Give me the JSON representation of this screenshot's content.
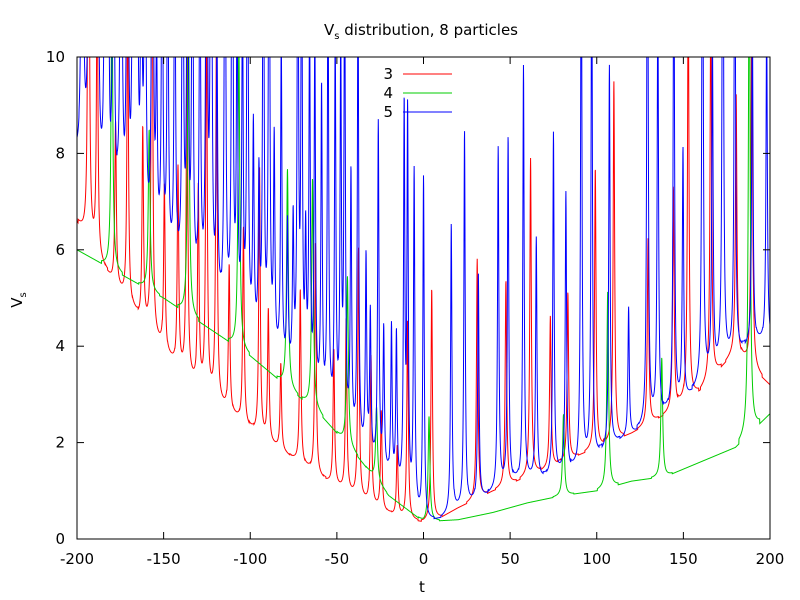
{
  "chart_data": {
    "type": "line",
    "title": "V",
    "title_sub": "s",
    "title_rest": " distribution, 8 particles",
    "xlabel": "t",
    "ylabel": "V",
    "ylabel_sub": "s",
    "xlim": [
      -200,
      200
    ],
    "ylim": [
      0,
      10
    ],
    "xticks": [
      -200,
      -150,
      -100,
      -50,
      0,
      50,
      100,
      150,
      200
    ],
    "yticks": [
      0,
      2,
      4,
      6,
      8,
      10
    ],
    "grid": false,
    "legend_position": "top-center",
    "series": [
      {
        "name": "3",
        "color": "#ff0000",
        "base": [
          [
            -200,
            6.6
          ],
          [
            -180,
            5.4
          ],
          [
            -160,
            4.4
          ],
          [
            -140,
            3.5
          ],
          [
            -120,
            2.9
          ],
          [
            -100,
            2.3
          ],
          [
            -80,
            1.8
          ],
          [
            -60,
            1.3
          ],
          [
            -40,
            0.9
          ],
          [
            -20,
            0.55
          ],
          [
            -10,
            0.42
          ],
          [
            0,
            0.36
          ],
          [
            10,
            0.45
          ],
          [
            20,
            0.65
          ],
          [
            40,
            1.0
          ],
          [
            60,
            1.3
          ],
          [
            80,
            1.6
          ],
          [
            100,
            1.9
          ],
          [
            120,
            2.2
          ],
          [
            140,
            2.6
          ],
          [
            160,
            3.1
          ],
          [
            180,
            3.9
          ],
          [
            200,
            3.2
          ]
        ],
        "spike_spacing": 7.5,
        "spike_height": 2.5,
        "spike_width": 0.5
      },
      {
        "name": "4",
        "color": "#00cc00",
        "base": [
          [
            -200,
            6.0
          ],
          [
            -150,
            5.0
          ],
          [
            -100,
            3.8
          ],
          [
            -60,
            2.6
          ],
          [
            -40,
            1.8
          ],
          [
            -20,
            0.9
          ],
          [
            0,
            0.36
          ],
          [
            20,
            0.4
          ],
          [
            40,
            0.55
          ],
          [
            60,
            0.75
          ],
          [
            80,
            0.9
          ],
          [
            100,
            1.0
          ],
          [
            120,
            1.2
          ],
          [
            140,
            1.3
          ],
          [
            160,
            1.6
          ],
          [
            180,
            1.9
          ],
          [
            200,
            2.6
          ]
        ],
        "spike_spacing": 22,
        "spike_height": 2.8,
        "spike_width": 0.6
      },
      {
        "name": "5",
        "color": "#0000ff",
        "base": [
          [
            -200,
            8.0
          ],
          [
            -170,
            6.6
          ],
          [
            -140,
            5.6
          ],
          [
            -110,
            4.6
          ],
          [
            -80,
            3.6
          ],
          [
            -60,
            2.8
          ],
          [
            -40,
            2.0
          ],
          [
            -20,
            1.3
          ],
          [
            -5,
            0.6
          ],
          [
            0,
            0.38
          ],
          [
            10,
            0.45
          ],
          [
            30,
            0.8
          ],
          [
            50,
            1.2
          ],
          [
            70,
            1.3
          ],
          [
            90,
            1.5
          ],
          [
            110,
            2.0
          ],
          [
            130,
            2.4
          ],
          [
            150,
            2.9
          ],
          [
            170,
            3.6
          ],
          [
            190,
            4.1
          ],
          [
            200,
            4.1
          ]
        ],
        "spike_spacing": 3.2,
        "spike_height": 4.0,
        "spike_width": 0.45
      }
    ]
  }
}
